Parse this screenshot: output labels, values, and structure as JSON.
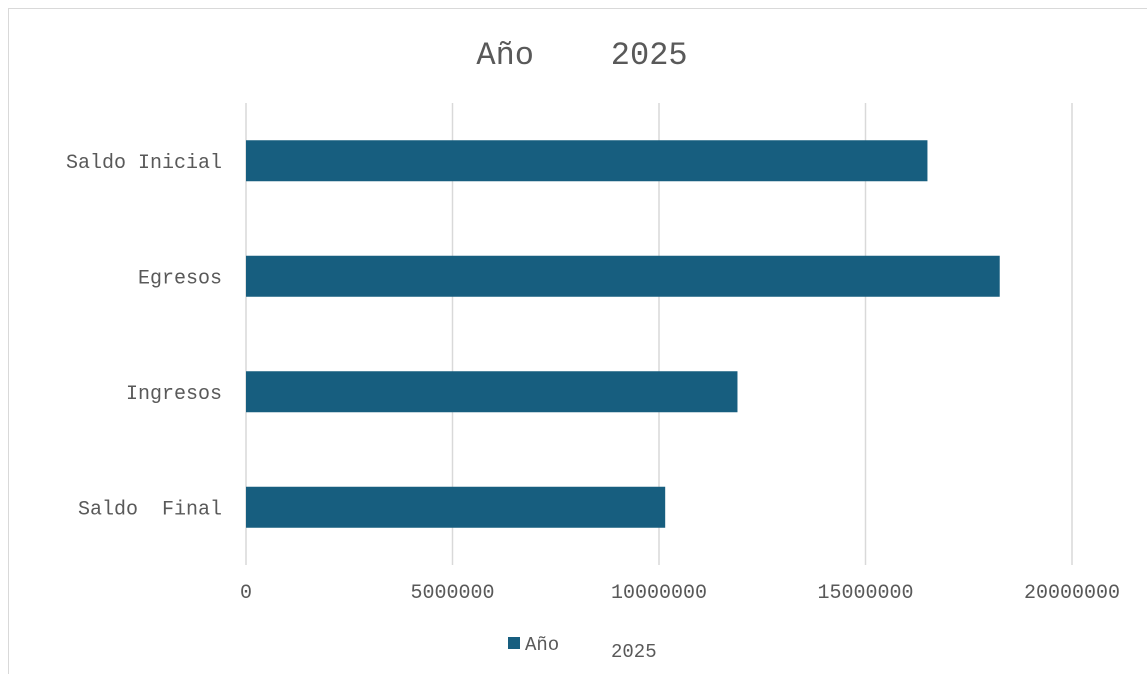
{
  "chart_data": {
    "type": "bar",
    "orientation": "horizontal",
    "title": "Año    2025",
    "categories": [
      "Saldo Inicial",
      "Egresos",
      "Ingresos",
      "Saldo  Final"
    ],
    "series": [
      {
        "name": "Año    2025",
        "legend_parts": [
          "Año",
          "2025"
        ],
        "color": "#175e7f",
        "values": [
          16500000,
          18250000,
          11900000,
          10150000
        ]
      }
    ],
    "xlabel": "",
    "ylabel": "",
    "xlim": [
      0,
      20000000
    ],
    "x_ticks": [
      0,
      5000000,
      10000000,
      15000000,
      20000000
    ],
    "x_tick_labels": [
      "0",
      "5000000",
      "10000000",
      "15000000",
      "20000000"
    ],
    "grid": true,
    "legend_position": "bottom",
    "colors": {
      "bar": "#175e7f",
      "grid": "#d9d9d9",
      "text": "#595959"
    }
  }
}
